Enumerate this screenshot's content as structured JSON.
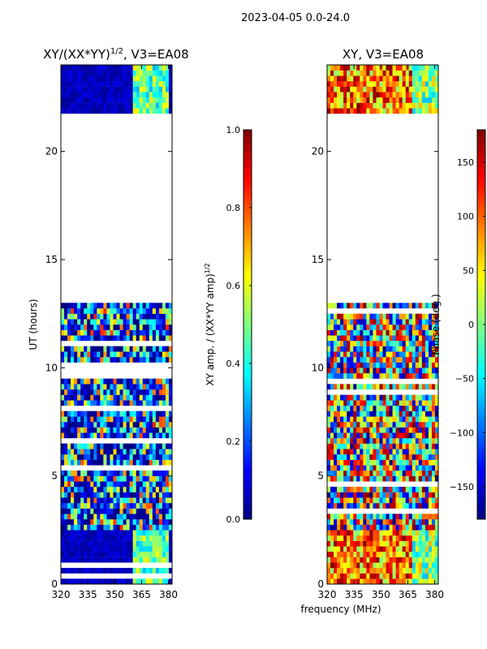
{
  "figure": {
    "suptitle": "2023-04-05 0.0-24.0",
    "xlabel": "frequency (MHz)"
  },
  "chart_data": [
    {
      "type": "heatmap",
      "title": "XY/(XX*YY)^1/2, V3=EA08",
      "title_main": "XY/(XX*YY)",
      "title_exp": "1/2",
      "title_tail": ", V3=EA08",
      "ylabel": "UT (hours)",
      "xlim": [
        320,
        382
      ],
      "ylim": [
        0,
        24
      ],
      "xticks": [
        320,
        335,
        350,
        365,
        380
      ],
      "yticks": [
        0,
        5,
        10,
        15,
        20
      ],
      "colorbar": {
        "label": "XY amp. / (XX*YY amp)^1/2",
        "label_main": "XY amp. / (XX*YY amp)",
        "label_exp": "1/2",
        "range": [
          0.0,
          1.0
        ],
        "ticks": [
          0.0,
          0.2,
          0.4,
          0.6,
          0.8,
          1.0
        ],
        "tick_labels": [
          "0.0",
          "0.2",
          "0.4",
          "0.6",
          "0.8",
          "1.0"
        ]
      },
      "data_bands": [
        {
          "hours": [
            0.0,
            0.3
          ],
          "level": "low",
          "edge_high": true
        },
        {
          "hours": [
            0.3,
            0.5
          ],
          "level": "gap"
        },
        {
          "hours": [
            0.5,
            0.8
          ],
          "level": "low",
          "edge_high": true
        },
        {
          "hours": [
            0.8,
            1.0
          ],
          "level": "gap"
        },
        {
          "hours": [
            1.0,
            2.6
          ],
          "level": "low",
          "edge_high": true
        },
        {
          "hours": [
            2.6,
            12.9
          ],
          "level": "mixed"
        },
        {
          "hours": [
            12.9,
            21.8
          ],
          "level": "gap"
        },
        {
          "hours": [
            21.8,
            24.0
          ],
          "level": "low",
          "edge_high": true
        }
      ]
    },
    {
      "type": "heatmap",
      "title": "XY, V3=EA08",
      "ylabel": "",
      "xlim": [
        320,
        382
      ],
      "ylim": [
        0,
        24
      ],
      "xticks": [
        320,
        335,
        350,
        365,
        380
      ],
      "yticks": [
        0,
        5,
        10,
        15,
        20
      ],
      "colorbar": {
        "label": "Phase (deg.)",
        "range": [
          -180,
          180
        ],
        "ticks": [
          -150,
          -100,
          -50,
          0,
          50,
          100,
          150
        ],
        "tick_labels": [
          "−150",
          "−100",
          "−50",
          "0",
          "50",
          "100",
          "150"
        ]
      },
      "data_bands": [
        {
          "hours": [
            0.0,
            2.6
          ],
          "level": "phase"
        },
        {
          "hours": [
            2.6,
            12.9
          ],
          "level": "mixed"
        },
        {
          "hours": [
            12.9,
            21.8
          ],
          "level": "gap"
        },
        {
          "hours": [
            21.8,
            24.0
          ],
          "level": "phase"
        }
      ]
    }
  ]
}
